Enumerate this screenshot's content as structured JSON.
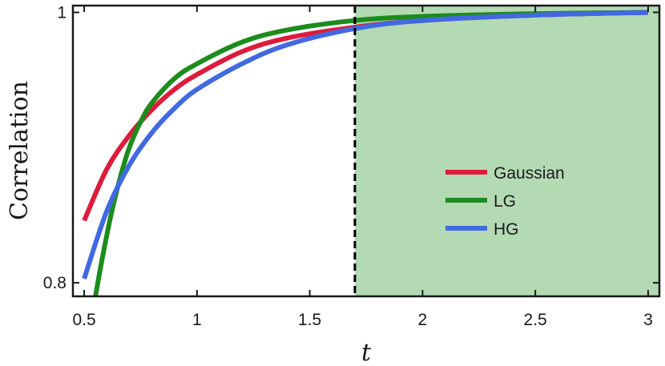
{
  "chart_data": {
    "type": "line",
    "title": "",
    "xlabel": "t",
    "ylabel": "Correlation",
    "xlim": [
      0.45,
      3.05
    ],
    "ylim": [
      0.79,
      1.005
    ],
    "xticks": [
      0.5,
      1,
      1.5,
      2,
      2.5,
      3
    ],
    "xtick_labels": [
      "0.5",
      "1",
      "1.5",
      "2",
      "2.5",
      "3"
    ],
    "yticks": [
      0.8,
      1
    ],
    "ytick_labels": [
      "0.8",
      "1"
    ],
    "grid": false,
    "legend_position": "center-right",
    "threshold": {
      "x": 1.7,
      "style": "dashed",
      "shade_color": "#b3dab3"
    },
    "series": [
      {
        "name": "Gaussian",
        "color": "#dd1c3c",
        "x": [
          0.5,
          0.6,
          0.7,
          0.8,
          0.9,
          1.0,
          1.2,
          1.4,
          1.7,
          2.0,
          2.5,
          3.0
        ],
        "y": [
          0.846,
          0.884,
          0.909,
          0.928,
          0.943,
          0.954,
          0.971,
          0.981,
          0.989,
          0.994,
          0.998,
          1.0
        ]
      },
      {
        "name": "LG",
        "color": "#1c8c1c",
        "x": [
          0.55,
          0.58,
          0.62,
          0.66,
          0.7,
          0.75,
          0.8,
          0.9,
          1.0,
          1.2,
          1.4,
          1.7,
          2.0,
          2.5,
          3.0
        ],
        "y": [
          0.79,
          0.818,
          0.851,
          0.878,
          0.9,
          0.919,
          0.933,
          0.951,
          0.962,
          0.978,
          0.987,
          0.994,
          0.997,
          0.999,
          1.0
        ]
      },
      {
        "name": "HG",
        "color": "#4169e1",
        "x": [
          0.5,
          0.6,
          0.7,
          0.8,
          0.9,
          1.0,
          1.2,
          1.4,
          1.7,
          2.0,
          2.5,
          3.0
        ],
        "y": [
          0.803,
          0.853,
          0.887,
          0.911,
          0.929,
          0.943,
          0.962,
          0.976,
          0.988,
          0.994,
          0.998,
          1.0
        ]
      }
    ]
  }
}
